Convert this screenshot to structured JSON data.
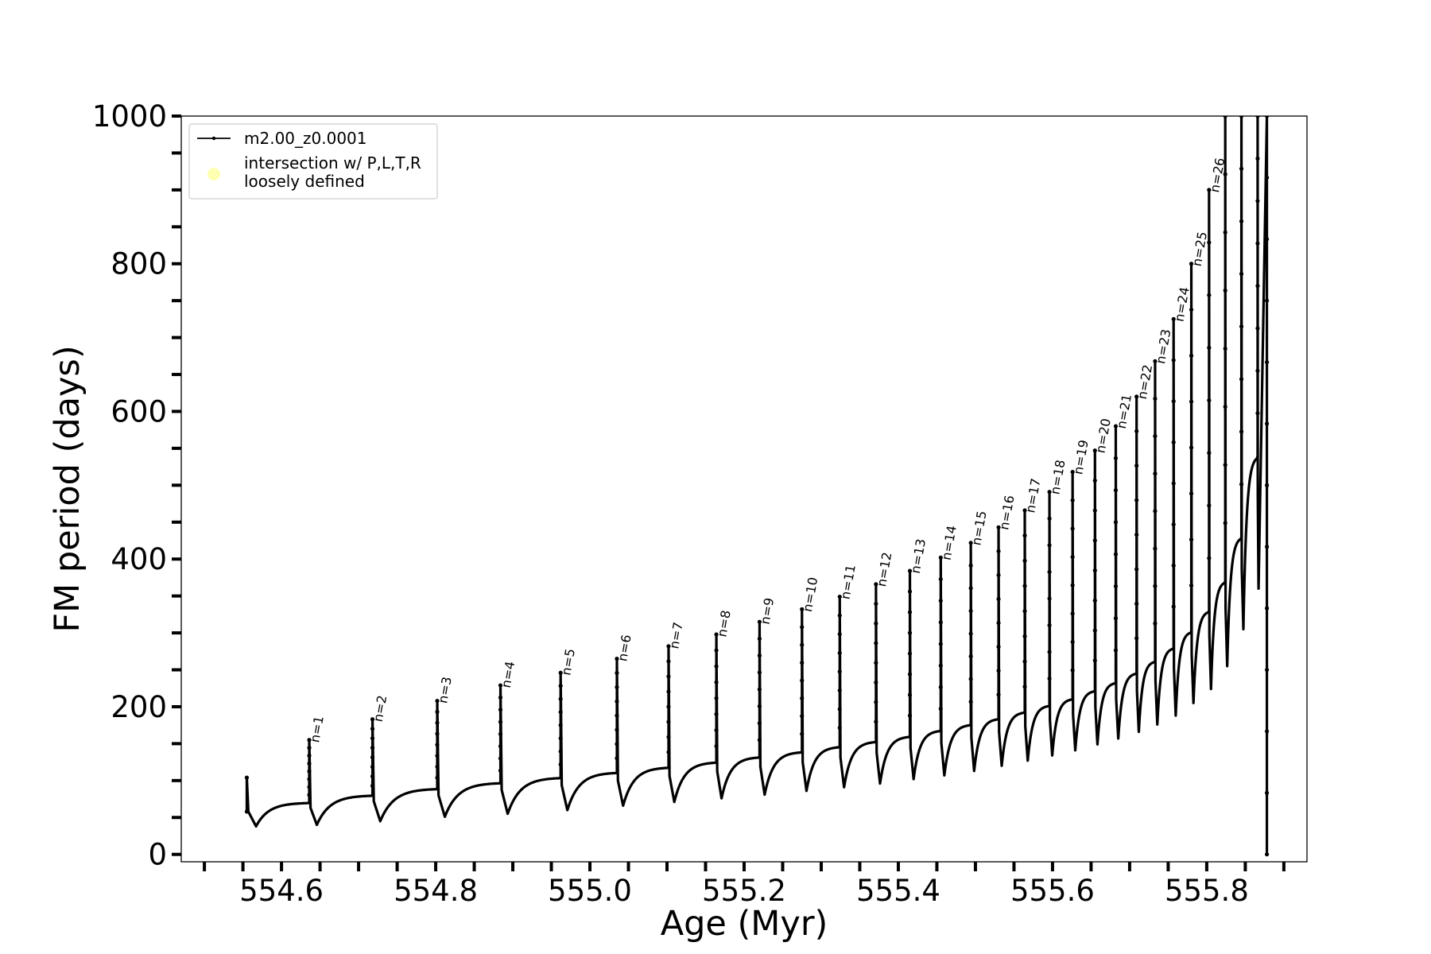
{
  "chart_data": {
    "type": "line",
    "xlabel": "Age (Myr)",
    "ylabel": "FM period (days)",
    "xlim": [
      554.47,
      555.93
    ],
    "ylim": [
      -10,
      1000
    ],
    "x_tick_values": [
      554.6,
      554.8,
      555.0,
      555.2,
      555.4,
      555.6,
      555.8
    ],
    "x_tick_labels": [
      "554.6",
      "554.8",
      "555.0",
      "555.2",
      "555.4",
      "555.6",
      "555.8"
    ],
    "x_minor_ticks": [
      554.5,
      554.55,
      554.65,
      554.7,
      554.75,
      554.85,
      554.9,
      554.95,
      555.05,
      555.1,
      555.15,
      555.25,
      555.3,
      555.35,
      555.45,
      555.5,
      555.55,
      555.65,
      555.7,
      555.75,
      555.85,
      555.9
    ],
    "y_tick_values": [
      0,
      200,
      400,
      600,
      800,
      1000
    ],
    "y_tick_labels": [
      "0",
      "200",
      "400",
      "600",
      "800",
      "1000"
    ],
    "y_minor_ticks": [
      50,
      100,
      150,
      250,
      300,
      350,
      450,
      500,
      550,
      650,
      700,
      750,
      850,
      900,
      950
    ],
    "legend": {
      "placement": "upper-left",
      "entries": [
        {
          "label": "m2.00_z0.0001",
          "color": "#000000",
          "marker": "line"
        },
        {
          "label": "intersection w/ P,L,T,R\nloosely defined",
          "color": "#ffffaa",
          "marker": "circle"
        }
      ]
    },
    "series": [
      {
        "name": "m2.00_z0.0001",
        "color": "#000000",
        "start": {
          "x": 554.555,
          "y": 58,
          "spike_peak": 104,
          "dip": 38
        },
        "pulses": [
          {
            "label": "n=1",
            "x": 554.636,
            "peak": 155,
            "dip": 40,
            "base": 70
          },
          {
            "label": "n=2",
            "x": 554.718,
            "peak": 183,
            "dip": 45,
            "base": 80
          },
          {
            "label": "n=3",
            "x": 554.802,
            "peak": 208,
            "dip": 51,
            "base": 89
          },
          {
            "label": "n=4",
            "x": 554.884,
            "peak": 229,
            "dip": 55,
            "base": 97
          },
          {
            "label": "n=5",
            "x": 554.962,
            "peak": 246,
            "dip": 60,
            "base": 104
          },
          {
            "label": "n=6",
            "x": 555.035,
            "peak": 265,
            "dip": 66,
            "base": 111
          },
          {
            "label": "n=7",
            "x": 555.102,
            "peak": 282,
            "dip": 71,
            "base": 118
          },
          {
            "label": "n=8",
            "x": 555.164,
            "peak": 298,
            "dip": 76,
            "base": 125
          },
          {
            "label": "n=9",
            "x": 555.22,
            "peak": 315,
            "dip": 81,
            "base": 132
          },
          {
            "label": "n=10",
            "x": 555.275,
            "peak": 332,
            "dip": 86,
            "base": 139
          },
          {
            "label": "n=11",
            "x": 555.324,
            "peak": 349,
            "dip": 91,
            "base": 146
          },
          {
            "label": "n=12",
            "x": 555.371,
            "peak": 366,
            "dip": 96,
            "base": 153
          },
          {
            "label": "n=13",
            "x": 555.415,
            "peak": 384,
            "dip": 102,
            "base": 160
          },
          {
            "label": "n=14",
            "x": 555.455,
            "peak": 402,
            "dip": 107,
            "base": 168
          },
          {
            "label": "n=15",
            "x": 555.494,
            "peak": 422,
            "dip": 113,
            "base": 176
          },
          {
            "label": "n=16",
            "x": 555.53,
            "peak": 443,
            "dip": 120,
            "base": 184
          },
          {
            "label": "n=17",
            "x": 555.564,
            "peak": 466,
            "dip": 127,
            "base": 193
          },
          {
            "label": "n=18",
            "x": 555.596,
            "peak": 491,
            "dip": 134,
            "base": 202
          },
          {
            "label": "n=19",
            "x": 555.626,
            "peak": 518,
            "dip": 141,
            "base": 211
          },
          {
            "label": "n=20",
            "x": 555.655,
            "peak": 547,
            "dip": 149,
            "base": 222
          },
          {
            "label": "n=21",
            "x": 555.682,
            "peak": 580,
            "dip": 157,
            "base": 233
          },
          {
            "label": "n=22",
            "x": 555.709,
            "peak": 620,
            "dip": 166,
            "base": 246
          },
          {
            "label": "n=23",
            "x": 555.733,
            "peak": 668,
            "dip": 176,
            "base": 262
          },
          {
            "label": "n=24",
            "x": 555.757,
            "peak": 725,
            "dip": 188,
            "base": 280
          },
          {
            "label": "n=25",
            "x": 555.78,
            "peak": 800,
            "dip": 205,
            "base": 302
          },
          {
            "label": "n=26",
            "x": 555.803,
            "peak": 900,
            "dip": 224,
            "base": 330
          },
          {
            "label": "",
            "x": 555.824,
            "peak": 1000,
            "dip": 255,
            "base": 370
          },
          {
            "label": "",
            "x": 555.845,
            "peak": 1000,
            "dip": 305,
            "base": 430
          },
          {
            "label": "",
            "x": 555.866,
            "peak": 1000,
            "dip": 360,
            "base": 540
          }
        ],
        "end": {
          "x": 555.878,
          "y_top": 1000,
          "y_bottom": 0
        }
      }
    ]
  }
}
